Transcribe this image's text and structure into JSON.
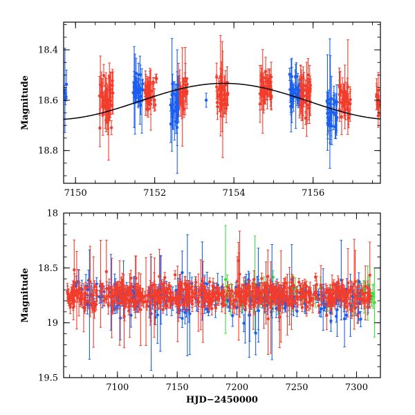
{
  "chart_data": [
    {
      "type": "scatter",
      "panel": "top",
      "title": "",
      "xlabel": "",
      "ylabel": "Magnitude",
      "xlim": [
        7149.7,
        7157.7
      ],
      "ylim": [
        18.93,
        18.29
      ],
      "y_inverted": true,
      "xticks": [
        7150,
        7152,
        7154,
        7156
      ],
      "xtick_labels": [
        "7150",
        "7152",
        "7154",
        "7156"
      ],
      "yticks": [
        18.4,
        18.6,
        18.8
      ],
      "ytick_labels": [
        "18.4",
        "18.6",
        "18.8"
      ],
      "series": [
        {
          "name": "red-band",
          "color": "#f23c2c",
          "clusters": [
            {
              "x": [
                7150.6,
                7150.95
              ],
              "mean": 18.6,
              "spread": 0.09,
              "err": 0.06,
              "n": 45
            },
            {
              "x": [
                7151.75,
                7152.05
              ],
              "mean": 18.57,
              "spread": 0.05,
              "err": 0.04,
              "n": 35
            },
            {
              "x": [
                7152.6,
                7152.85
              ],
              "mean": 18.57,
              "spread": 0.06,
              "err": 0.05,
              "n": 25
            },
            {
              "x": [
                7153.55,
                7153.85
              ],
              "mean": 18.57,
              "spread": 0.06,
              "err": 0.05,
              "n": 40
            },
            {
              "x": [
                7154.65,
                7154.95
              ],
              "mean": 18.56,
              "spread": 0.05,
              "err": 0.04,
              "n": 40
            },
            {
              "x": [
                7155.65,
                7155.95
              ],
              "mean": 18.57,
              "spread": 0.06,
              "err": 0.05,
              "n": 40
            },
            {
              "x": [
                7156.65,
                7156.95
              ],
              "mean": 18.6,
              "spread": 0.06,
              "err": 0.05,
              "n": 35
            },
            {
              "x": [
                7157.6,
                7157.7
              ],
              "mean": 18.6,
              "spread": 0.05,
              "err": 0.05,
              "n": 10
            }
          ]
        },
        {
          "name": "blue-band",
          "color": "#1a5ff0",
          "clusters": [
            {
              "x": [
                7149.7,
                7149.78
              ],
              "mean": 18.58,
              "spread": 0.04,
              "err": 0.04,
              "n": 6
            },
            {
              "x": [
                7151.45,
                7151.7
              ],
              "mean": 18.57,
              "spread": 0.05,
              "err": 0.04,
              "n": 30
            },
            {
              "x": [
                7152.4,
                7152.6
              ],
              "mean": 18.63,
              "spread": 0.06,
              "err": 0.05,
              "n": 30
            },
            {
              "x": [
                7153.3,
                7153.3
              ],
              "mean": 18.6,
              "spread": 0.0,
              "err": 0.02,
              "n": 1
            },
            {
              "x": [
                7155.4,
                7155.65
              ],
              "mean": 18.57,
              "spread": 0.05,
              "err": 0.04,
              "n": 30
            },
            {
              "x": [
                7156.35,
                7156.6
              ],
              "mean": 18.65,
              "spread": 0.06,
              "err": 0.06,
              "n": 30
            }
          ]
        }
      ],
      "model_curve": {
        "name": "sinusoid-fit",
        "color": "#000000",
        "mean": 18.605,
        "amplitude": 0.072,
        "peak_x": 7153.75,
        "period": 8.6
      }
    },
    {
      "type": "scatter",
      "panel": "bottom",
      "title": "",
      "xlabel": "HJD−2450000",
      "ylabel": "Magnitude",
      "xlim": [
        7055,
        7320
      ],
      "ylim": [
        19.5,
        18.0
      ],
      "y_inverted": true,
      "xticks": [
        7100,
        7150,
        7200,
        7250,
        7300
      ],
      "xtick_labels": [
        "7100",
        "7150",
        "7200",
        "7250",
        "7300"
      ],
      "yticks": [
        18.0,
        18.5,
        19.0,
        19.5
      ],
      "ytick_labels": [
        "18",
        "18.5",
        "19",
        "19.5"
      ],
      "series": [
        {
          "name": "red-band",
          "color": "#f23c2c",
          "x_range": [
            7058,
            7312
          ],
          "mean": 18.75,
          "spread": 0.1,
          "err": 0.06,
          "n": 650
        },
        {
          "name": "blue-band",
          "color": "#1a5ff0",
          "x_range": [
            7063,
            7312
          ],
          "mean": 18.78,
          "spread": 0.13,
          "err": 0.08,
          "n": 260
        },
        {
          "name": "green-band",
          "color": "#3ce13c",
          "x_range": [
            7182,
            7316
          ],
          "mean": 18.75,
          "spread": 0.1,
          "err": 0.08,
          "n": 70
        }
      ]
    }
  ]
}
